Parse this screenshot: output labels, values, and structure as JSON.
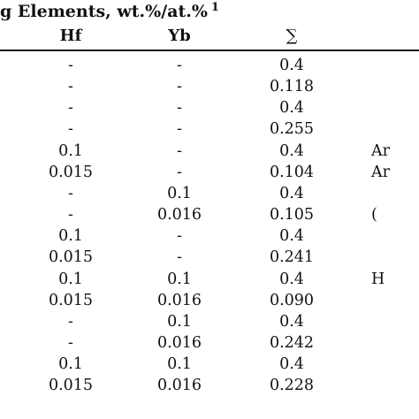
{
  "title": {
    "text": "g Elements, wt.%/at.%",
    "sup": "1"
  },
  "headers": {
    "hf": "Hf",
    "yb": "Yb",
    "sum": "∑"
  },
  "rows": [
    {
      "hf": "-",
      "yb": "-",
      "sum": "0.4",
      "note": ""
    },
    {
      "hf": "-",
      "yb": "-",
      "sum": "0.118",
      "note": ""
    },
    {
      "hf": "-",
      "yb": "-",
      "sum": "0.4",
      "note": ""
    },
    {
      "hf": "-",
      "yb": "-",
      "sum": "0.255",
      "note": ""
    },
    {
      "hf": "0.1",
      "yb": "-",
      "sum": "0.4",
      "note": "Ar"
    },
    {
      "hf": "0.015",
      "yb": "-",
      "sum": "0.104",
      "note": "Ar"
    },
    {
      "hf": "-",
      "yb": "0.1",
      "sum": "0.4",
      "note": ""
    },
    {
      "hf": "-",
      "yb": "0.016",
      "sum": "0.105",
      "note": "("
    },
    {
      "hf": "0.1",
      "yb": "-",
      "sum": "0.4",
      "note": ""
    },
    {
      "hf": "0.015",
      "yb": "-",
      "sum": "0.241",
      "note": ""
    },
    {
      "hf": "0.1",
      "yb": "0.1",
      "sum": "0.4",
      "note": "H"
    },
    {
      "hf": "0.015",
      "yb": "0.016",
      "sum": "0.090",
      "note": ""
    },
    {
      "hf": "-",
      "yb": "0.1",
      "sum": "0.4",
      "note": ""
    },
    {
      "hf": "-",
      "yb": "0.016",
      "sum": "0.242",
      "note": ""
    },
    {
      "hf": "0.1",
      "yb": "0.1",
      "sum": "0.4",
      "note": ""
    },
    {
      "hf": "0.015",
      "yb": "0.016",
      "sum": "0.228",
      "note": ""
    }
  ]
}
